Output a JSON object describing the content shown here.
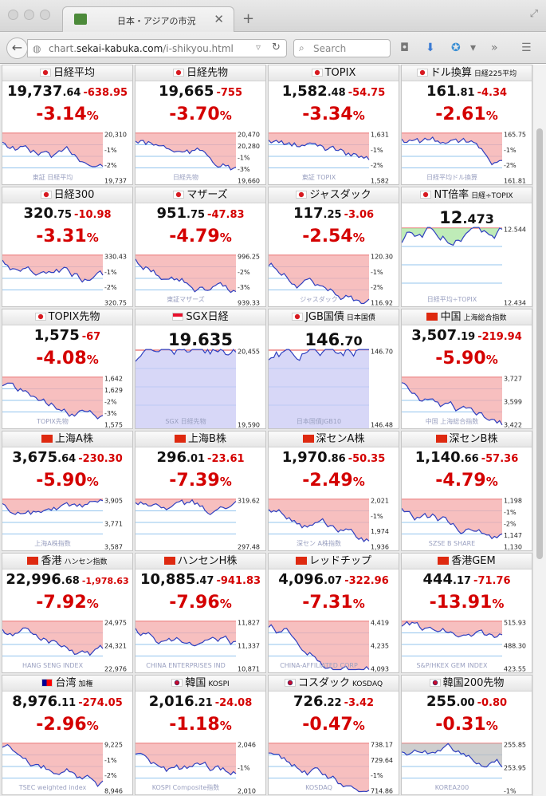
{
  "browser": {
    "tab_title": "日本・アジアの市況",
    "url_prefix": "chart.",
    "url_domain": "sekai-kabuka.com",
    "url_path": "/i-shikyou.html",
    "search_placeholder": "Search"
  },
  "markets": [
    {
      "name": "日経平均",
      "sub": "",
      "flag": "jp",
      "int": "19,737",
      "dec": ".64",
      "chg": "-638.95",
      "pct": "-3.14",
      "mode": "pct",
      "ticks": [
        "20,310",
        "-1%",
        "-2%",
        "19,737"
      ],
      "wm": "東証 日経平均",
      "fill": "red"
    },
    {
      "name": "日経先物",
      "sub": "",
      "flag": "jp",
      "int": "19,665",
      "dec": "",
      "chg": "-755",
      "pct": "-3.70",
      "mode": "pct",
      "ticks": [
        "20,470",
        "20,280",
        "-1%",
        "-3%",
        "19,660"
      ],
      "wm": "日経先物",
      "fill": "red"
    },
    {
      "name": "TOPIX",
      "sub": "",
      "flag": "jp",
      "int": "1,582",
      "dec": ".48",
      "chg": "-54.75",
      "pct": "-3.34",
      "mode": "pct",
      "ticks": [
        "1,631",
        "-1%",
        "-2%",
        "1,582"
      ],
      "wm": "東証 TOPIX",
      "fill": "red"
    },
    {
      "name": "ドル換算",
      "sub": "日経225平均",
      "flag": "jp",
      "int": "161",
      "dec": ".81",
      "chg": "-4.34",
      "pct": "-2.61",
      "mode": "pct",
      "ticks": [
        "165.75",
        "-1%",
        "-2%",
        "161.81"
      ],
      "wm": "日経平均ドル換算",
      "fill": "red"
    },
    {
      "name": "日経300",
      "sub": "",
      "flag": "jp",
      "int": "320",
      "dec": ".75",
      "chg": "-10.98",
      "pct": "-3.31",
      "mode": "pct",
      "ticks": [
        "330.43",
        "-1%",
        "-2%",
        "320.75"
      ],
      "wm": "",
      "fill": "red"
    },
    {
      "name": "マザーズ",
      "sub": "",
      "flag": "jp",
      "int": "951",
      "dec": ".75",
      "chg": "-47.83",
      "pct": "-4.79",
      "mode": "pct",
      "ticks": [
        "996.25",
        "-2%",
        "-3%",
        "939.33"
      ],
      "wm": "東証マザーズ",
      "fill": "red"
    },
    {
      "name": "ジャスダック",
      "sub": "",
      "flag": "jp",
      "int": "117",
      "dec": ".25",
      "chg": "-3.06",
      "pct": "-2.54",
      "mode": "pct",
      "ticks": [
        "120.30",
        "-1%",
        "-2%",
        "116.92"
      ],
      "wm": "ジャスダック",
      "fill": "red"
    },
    {
      "name": "NT倍率",
      "sub": "日経÷TOPIX",
      "flag": "jp",
      "int": "12",
      "dec": ".473",
      "chg": "",
      "pct": "",
      "mode": "big",
      "ticks": [
        "12.544",
        "12.434"
      ],
      "wm": "日経平均÷TOPIX",
      "fill": "green"
    },
    {
      "name": "TOPIX先物",
      "sub": "",
      "flag": "jp",
      "int": "1,575",
      "dec": "",
      "chg": "-67",
      "pct": "-4.08",
      "mode": "pct",
      "ticks": [
        "1,642",
        "1,629",
        "-2%",
        "-3%",
        "1,575"
      ],
      "wm": "TOPIX先物",
      "fill": "red"
    },
    {
      "name": "SGX日経",
      "sub": "",
      "flag": "sg",
      "int": "19,635",
      "dec": "",
      "chg": "",
      "pct": "",
      "mode": "big",
      "ticks": [
        "20,455",
        "19,590"
      ],
      "wm": "SGX 日経先物",
      "fill": "blue"
    },
    {
      "name": "JGB国債",
      "sub": "日本国債",
      "flag": "jp",
      "int": "146",
      "dec": ".70",
      "chg": "",
      "pct": "",
      "mode": "big",
      "ticks": [
        "146.70",
        "146.48"
      ],
      "wm": "日本国債JGB10",
      "fill": "blue"
    },
    {
      "name": "中国",
      "sub": "上海総合指数",
      "flag": "cn",
      "int": "3,507",
      "dec": ".19",
      "chg": "-219.94",
      "pct": "-5.90",
      "mode": "pct",
      "ticks": [
        "3,727",
        "3,599",
        "3,422"
      ],
      "wm": "中国 上海総合指数",
      "fill": "red"
    },
    {
      "name": "上海A株",
      "sub": "",
      "flag": "cn",
      "int": "3,675",
      "dec": ".64",
      "chg": "-230.30",
      "pct": "-5.90",
      "mode": "pct",
      "ticks": [
        "3,905",
        "3,771",
        "3,587"
      ],
      "wm": "上海A株指数",
      "fill": "red"
    },
    {
      "name": "上海B株",
      "sub": "",
      "flag": "cn",
      "int": "296",
      "dec": ".01",
      "chg": "-23.61",
      "pct": "-7.39",
      "mode": "pct",
      "ticks": [
        "319.62",
        "297.48"
      ],
      "wm": "",
      "fill": "red"
    },
    {
      "name": "深センA株",
      "sub": "",
      "flag": "cn",
      "int": "1,970",
      "dec": ".86",
      "chg": "-50.35",
      "pct": "-2.49",
      "mode": "pct",
      "ticks": [
        "2,021",
        "-1%",
        "1,974",
        "1,936"
      ],
      "wm": "深セン A株指数",
      "fill": "red"
    },
    {
      "name": "深センB株",
      "sub": "",
      "flag": "cn",
      "int": "1,140",
      "dec": ".66",
      "chg": "-57.36",
      "pct": "-4.79",
      "mode": "pct",
      "ticks": [
        "1,198",
        "-1%",
        "-2%",
        "1,147",
        "1,130"
      ],
      "wm": "SZSE B SHARE",
      "fill": "red"
    },
    {
      "name": "香港",
      "sub": "ハンセン指数",
      "flag": "hk",
      "int": "22,996",
      "dec": ".68",
      "chg": "-1,978.63",
      "pct": "-7.92",
      "mode": "pct",
      "ticks": [
        "24,975",
        "24,321",
        "22,976"
      ],
      "wm": "HANG SENG INDEX",
      "fill": "red"
    },
    {
      "name": "ハンセンH株",
      "sub": "",
      "flag": "hk",
      "int": "10,885",
      "dec": ".47",
      "chg": "-941.83",
      "pct": "-7.96",
      "mode": "pct",
      "ticks": [
        "11,827",
        "11,337",
        "10,871"
      ],
      "wm": "CHINA ENTERPRISES IND",
      "fill": "red"
    },
    {
      "name": "レッドチップ",
      "sub": "",
      "flag": "hk",
      "int": "4,096",
      "dec": ".07",
      "chg": "-322.96",
      "pct": "-7.31",
      "mode": "pct",
      "ticks": [
        "4,419",
        "4,235",
        "4,093"
      ],
      "wm": "CHINA-AFFILIATED CORP",
      "fill": "red"
    },
    {
      "name": "香港GEM",
      "sub": "",
      "flag": "hk",
      "int": "444",
      "dec": ".17",
      "chg": "-71.76",
      "pct": "-13.91",
      "mode": "pct",
      "ticks": [
        "515.93",
        "488.30",
        "423.55"
      ],
      "wm": "S&P/HKEX GEM INDEX",
      "fill": "red"
    },
    {
      "name": "台湾",
      "sub": "加権",
      "flag": "tw",
      "int": "8,976",
      "dec": ".11",
      "chg": "-274.05",
      "pct": "-2.96",
      "mode": "pct",
      "ticks": [
        "9,225",
        "-1%",
        "-2%",
        "8,946"
      ],
      "wm": "TSEC weighted index",
      "fill": "red"
    },
    {
      "name": "韓国",
      "sub": "KOSPI",
      "flag": "kr",
      "int": "2,016",
      "dec": ".21",
      "chg": "-24.08",
      "pct": "-1.18",
      "mode": "pct",
      "ticks": [
        "2,046",
        "-1%",
        "2,010"
      ],
      "wm": "KOSPI Composite指数",
      "fill": "red"
    },
    {
      "name": "コスダック",
      "sub": "KOSDAQ",
      "flag": "kr",
      "int": "726",
      "dec": ".22",
      "chg": "-3.42",
      "pct": "-0.47",
      "mode": "pct",
      "ticks": [
        "738.17",
        "729.64",
        "-1%",
        "714.86"
      ],
      "wm": "KOSDAQ",
      "fill": "red"
    },
    {
      "name": "韓国200先物",
      "sub": "",
      "flag": "kr",
      "int": "255",
      "dec": ".00",
      "chg": "-0.80",
      "pct": "-0.31",
      "mode": "pct",
      "ticks": [
        "255.85",
        "253.95",
        "-1%"
      ],
      "wm": "KOREA200",
      "fill": "gray"
    }
  ],
  "colors": {
    "down": "#d40000",
    "fill_red": "#f4a9a9",
    "fill_green": "#a9e6a0",
    "fill_blue": "#c9c9f4",
    "line": "#2f3fbf"
  }
}
